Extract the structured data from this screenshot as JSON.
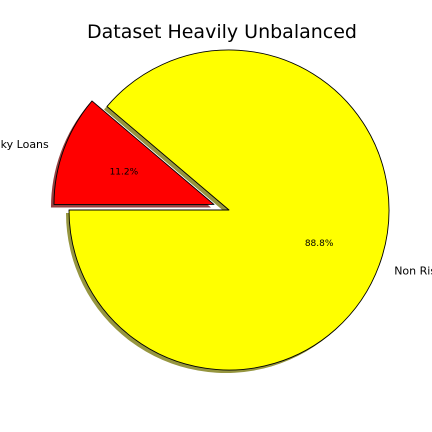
{
  "chart_data": {
    "type": "pie",
    "title": "Dataset Heavily Unbalanced",
    "slices": [
      {
        "label": "Non Risky Loans",
        "value": 88.8,
        "pct_label": "88.8%",
        "color": "#ffff00",
        "explode": 0.0
      },
      {
        "label": "Risky Loans",
        "value": 11.2,
        "pct_label": "11.2%",
        "color": "#ff0000",
        "explode": 0.1
      }
    ],
    "start_angle_deg": 180,
    "shadow": true,
    "edge_color": "#000000"
  }
}
